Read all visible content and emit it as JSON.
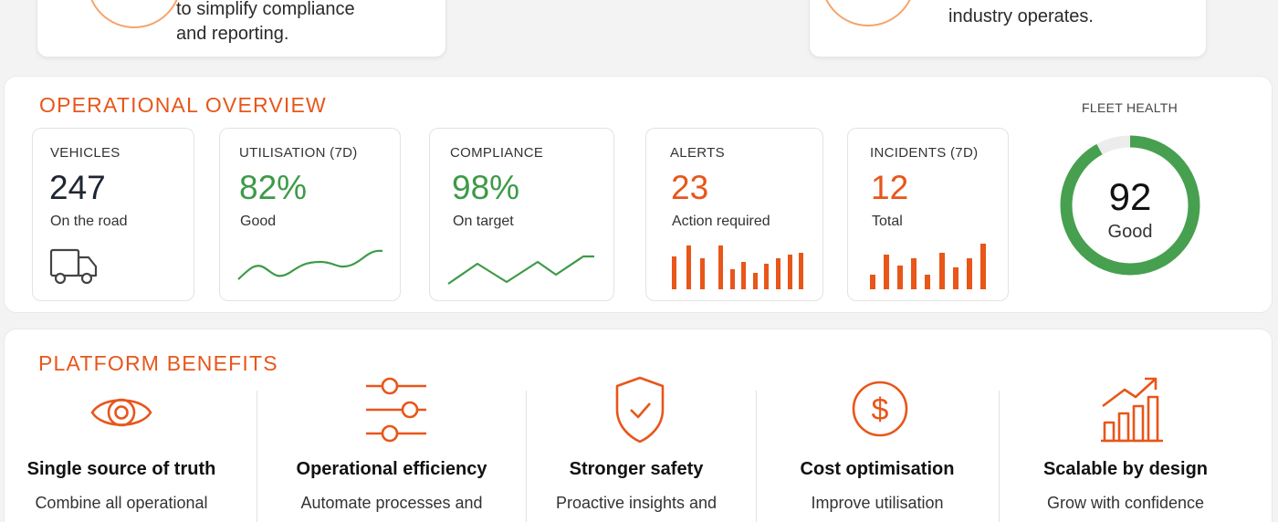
{
  "top": {
    "left_card_lines": [
      "to simplify compliance",
      "and reporting."
    ],
    "right_card_lines": [
      "industry operates."
    ]
  },
  "overview": {
    "title": "OPERATIONAL OVERVIEW",
    "stats": [
      {
        "label": "VEHICLES",
        "value": "247",
        "sub": "On the road",
        "icon": "truck-icon",
        "color": "#1f2533"
      },
      {
        "label": "UTILISATION (7D)",
        "value": "82%",
        "sub": "Good",
        "color": "#3d9a47"
      },
      {
        "label": "COMPLIANCE",
        "value": "98%",
        "sub": "On target",
        "color": "#3d9a47"
      },
      {
        "label": "ALERTS",
        "value": "23",
        "sub": "Action required",
        "color": "#e8561a"
      },
      {
        "label": "INCIDENTS (7D)",
        "value": "12",
        "sub": "Total",
        "color": "#e8561a"
      }
    ],
    "fleet_health": {
      "label": "FLEET HEALTH",
      "score": "92",
      "status": "Good",
      "fill_fraction": 0.92,
      "color": "#47a04f",
      "track_color": "#ececec"
    }
  },
  "benefits": {
    "title": "PLATFORM BENEFITS",
    "items": [
      {
        "icon": "eye-icon",
        "title": "Single source of truth",
        "desc": "Combine all operational"
      },
      {
        "icon": "sliders-icon",
        "title": "Operational efficiency",
        "desc": "Automate processes and"
      },
      {
        "icon": "shield-check-icon",
        "title": "Stronger safety",
        "desc": "Proactive insights and"
      },
      {
        "icon": "dollar-circle-icon",
        "title": "Cost optimisation",
        "desc": "Improve utilisation"
      },
      {
        "icon": "growth-chart-icon",
        "title": "Scalable by design",
        "desc": "Grow with confidence"
      }
    ]
  },
  "colors": {
    "accent": "#e8561a",
    "good": "#3d9a47",
    "dark": "#1f2533"
  }
}
